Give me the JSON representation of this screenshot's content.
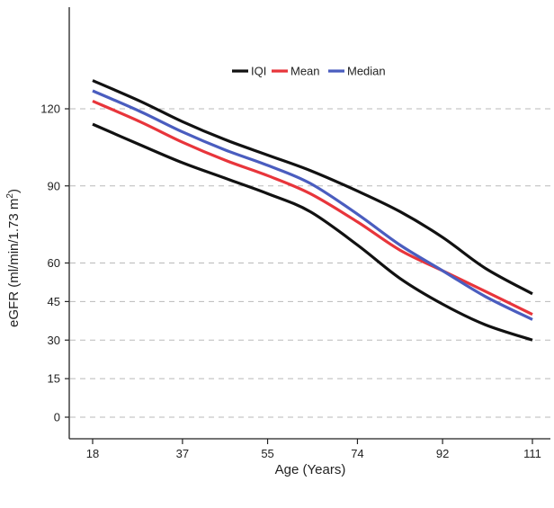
{
  "chart_data": {
    "type": "line",
    "title": "",
    "xlabel": "Age (Years)",
    "ylabel_main": "eGFR (ml/min/1.73 m",
    "ylabel_sup": "2",
    "ylabel_close": ")",
    "xlim": [
      18,
      111
    ],
    "ylim": [
      -5,
      150
    ],
    "x_ticks": [
      18,
      37,
      55,
      74,
      92,
      111
    ],
    "y_ticks": [
      0,
      15,
      30,
      45,
      60,
      90,
      120
    ],
    "grid": "horizontal dashed",
    "legend": {
      "placement": "top-center",
      "entries": [
        {
          "label": "IQI",
          "color": "#111111"
        },
        {
          "label": "Mean",
          "color": "#e8353b"
        },
        {
          "label": "Median",
          "color": "#4a5dbf"
        }
      ]
    },
    "series": [
      {
        "name": "IQI",
        "role": "upper",
        "color": "#111111",
        "x": [
          18,
          28,
          37,
          46,
          55,
          64,
          74,
          83,
          92,
          101,
          111
        ],
        "y": [
          131,
          123,
          115,
          108,
          102,
          96,
          88,
          80,
          70,
          58,
          48
        ]
      },
      {
        "name": "IQI",
        "role": "lower",
        "color": "#111111",
        "x": [
          18,
          28,
          37,
          46,
          55,
          64,
          74,
          83,
          92,
          101,
          111
        ],
        "y": [
          114,
          106,
          99,
          93,
          87,
          80,
          67,
          54,
          44,
          36,
          30
        ]
      },
      {
        "name": "Mean",
        "color": "#e8353b",
        "x": [
          18,
          28,
          37,
          46,
          55,
          64,
          74,
          83,
          92,
          101,
          111
        ],
        "y": [
          123,
          115,
          107,
          100,
          94,
          87,
          76,
          65,
          57,
          49,
          40
        ]
      },
      {
        "name": "Median",
        "color": "#4a5dbf",
        "x": [
          18,
          28,
          37,
          46,
          55,
          64,
          74,
          83,
          92,
          101,
          111
        ],
        "y": [
          127,
          119,
          111,
          104,
          98,
          91,
          79,
          67,
          57,
          47,
          38
        ]
      }
    ]
  }
}
